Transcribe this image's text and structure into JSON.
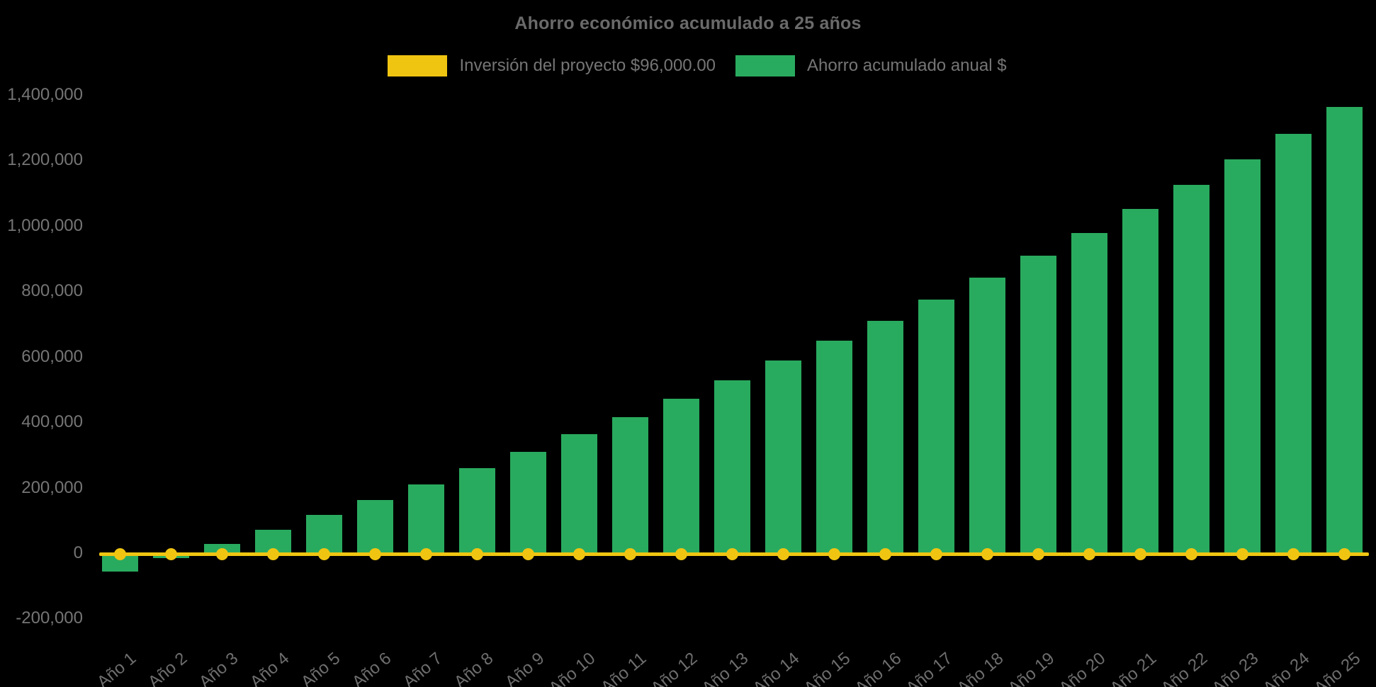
{
  "title": "Ahorro económico acumulado a 25 años",
  "colors": {
    "background": "#000000",
    "bar_green": "#29AB5F",
    "line_yellow": "#F0C512",
    "title_text": "#6A6A6A",
    "axis_text": "#757575",
    "x_label_text": "#6E6E6E"
  },
  "legend": {
    "items": [
      {
        "id": "investment",
        "label": "Inversión del proyecto $96,000.00",
        "color": "#F0C512"
      },
      {
        "id": "savings",
        "label": "Ahorro acumulado anual $",
        "color": "#29AB5F"
      }
    ]
  },
  "chart_data": {
    "type": "bar",
    "title": "Ahorro económico acumulado a 25 años",
    "categories": [
      "Año 1",
      "Año 2",
      "Año 3",
      "Año 4",
      "Año 5",
      "Año 6",
      "Año 7",
      "Año 8",
      "Año 9",
      "Año 10",
      "Año 11",
      "Año 12",
      "Año 13",
      "Año 14",
      "Año 15",
      "Año 16",
      "Año 17",
      "Año 18",
      "Año 19",
      "Año 20",
      "Año 21",
      "Año 22",
      "Año 23",
      "Año 24",
      "Año 25"
    ],
    "series": [
      {
        "name": "Ahorro acumulado anual $",
        "type": "bar",
        "color": "#29AB5F",
        "values": [
          -56000,
          -14800,
          27600,
          71300,
          116400,
          162700,
          210500,
          259700,
          310400,
          362600,
          416300,
          471700,
          528700,
          587500,
          648000,
          710300,
          774500,
          840600,
          908700,
          978800,
          1051100,
          1125500,
          1202100,
          1281100,
          1362400
        ]
      },
      {
        "name": "Inversión del proyecto $96,000.00",
        "type": "line",
        "color": "#F0C512",
        "plotted_as": "horizontal line at y=0 with a point marker at every year",
        "values": [
          0,
          0,
          0,
          0,
          0,
          0,
          0,
          0,
          0,
          0,
          0,
          0,
          0,
          0,
          0,
          0,
          0,
          0,
          0,
          0,
          0,
          0,
          0,
          0,
          0
        ]
      }
    ],
    "y_axis": {
      "min": -200000,
      "max": 1400000,
      "tick_step": 200000,
      "ticks": [
        1400000,
        1200000,
        1000000,
        800000,
        600000,
        400000,
        200000,
        0,
        -200000
      ],
      "tick_labels": [
        "1,400,000",
        "1,200,000",
        "1,000,000",
        "800,000",
        "600,000",
        "400,000",
        "200,000",
        "0",
        "-200,000"
      ]
    },
    "x_axis": {
      "label_rotation_deg": -40
    },
    "legend_position": "top",
    "grid": false
  }
}
